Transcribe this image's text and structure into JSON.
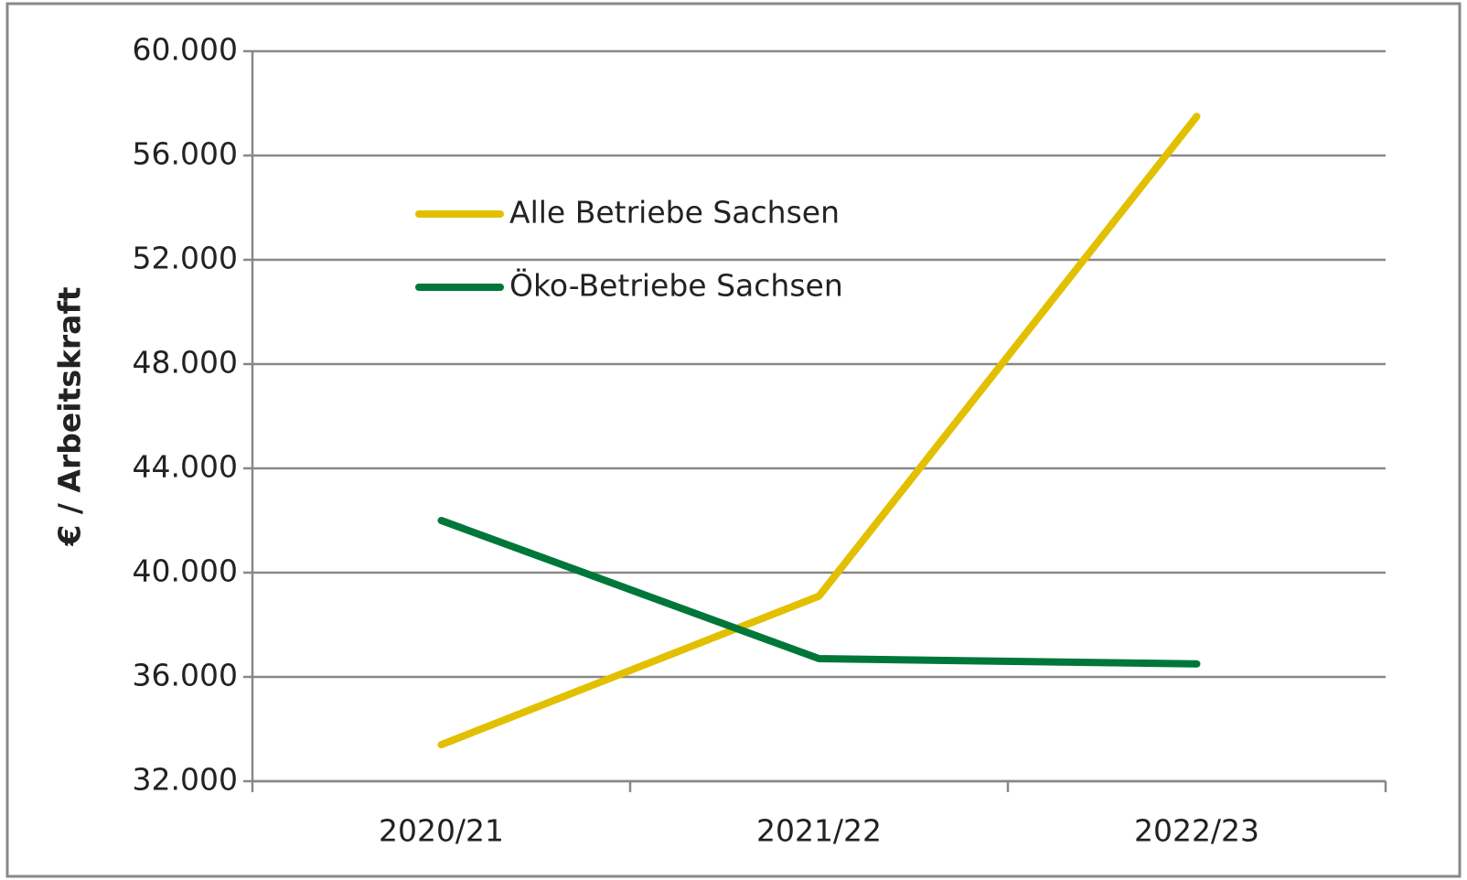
{
  "chart_data": {
    "type": "line",
    "y_label": "€ / Arbeitskraft",
    "categories": [
      "2020/21",
      "2021/22",
      "2022/23"
    ],
    "series": [
      {
        "name": "Alle Betriebe Sachsen",
        "color": "#e2c000",
        "values": [
          33400,
          39100,
          57500
        ]
      },
      {
        "name": "Öko-Betriebe Sachsen",
        "color": "#00773a",
        "values": [
          42000,
          36700,
          36500
        ]
      }
    ],
    "ylim": [
      32000,
      60000
    ],
    "yticks": [
      {
        "value": 32000,
        "label": "32.000"
      },
      {
        "value": 36000,
        "label": "36.000"
      },
      {
        "value": 40000,
        "label": "40.000"
      },
      {
        "value": 44000,
        "label": "44.000"
      },
      {
        "value": 48000,
        "label": "48.000"
      },
      {
        "value": 52000,
        "label": "52.000"
      },
      {
        "value": 56000,
        "label": "56.000"
      },
      {
        "value": 60000,
        "label": "60.000"
      }
    ],
    "grid": true
  }
}
